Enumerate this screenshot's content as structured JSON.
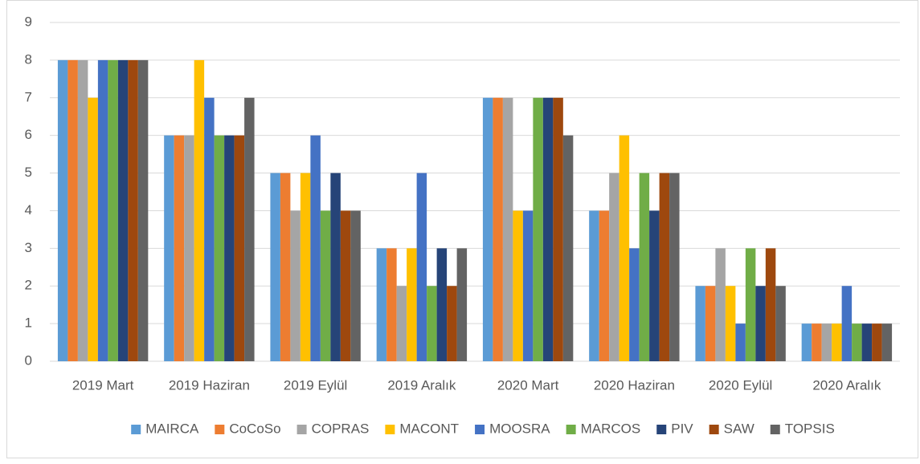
{
  "chart_data": {
    "type": "bar",
    "categories": [
      "2019 Mart",
      "2019 Haziran",
      "2019 Eylül",
      "2019 Aralık",
      "2020 Mart",
      "2020 Haziran",
      "2020 Eylül",
      "2020 Aralık"
    ],
    "series": [
      {
        "name": "MAIRCA",
        "color": "#5b9bd5",
        "values": [
          8,
          6,
          5,
          3,
          7,
          4,
          2,
          1
        ]
      },
      {
        "name": "CoCoSo",
        "color": "#ed7d31",
        "values": [
          8,
          6,
          5,
          3,
          7,
          4,
          2,
          1
        ]
      },
      {
        "name": "COPRAS",
        "color": "#a5a5a5",
        "values": [
          8,
          6,
          4,
          2,
          7,
          5,
          3,
          1
        ]
      },
      {
        "name": "MACONT",
        "color": "#ffc000",
        "values": [
          7,
          8,
          5,
          3,
          4,
          6,
          2,
          1
        ]
      },
      {
        "name": "MOOSRA",
        "color": "#4472c4",
        "values": [
          8,
          7,
          6,
          5,
          4,
          3,
          1,
          2
        ]
      },
      {
        "name": "MARCOS",
        "color": "#70ad47",
        "values": [
          8,
          6,
          4,
          2,
          7,
          5,
          3,
          1
        ]
      },
      {
        "name": "PIV",
        "color": "#264478",
        "values": [
          8,
          6,
          5,
          3,
          7,
          4,
          2,
          1
        ]
      },
      {
        "name": "SAW",
        "color": "#9e480e",
        "values": [
          8,
          6,
          4,
          2,
          7,
          5,
          3,
          1
        ]
      },
      {
        "name": "TOPSIS",
        "color": "#636363",
        "values": [
          8,
          7,
          4,
          3,
          6,
          5,
          2,
          1
        ]
      }
    ],
    "ylim": [
      0,
      9
    ],
    "yticks": [
      0,
      1,
      2,
      3,
      4,
      5,
      6,
      7,
      8,
      9
    ],
    "grid": true,
    "legend": "bottom"
  }
}
